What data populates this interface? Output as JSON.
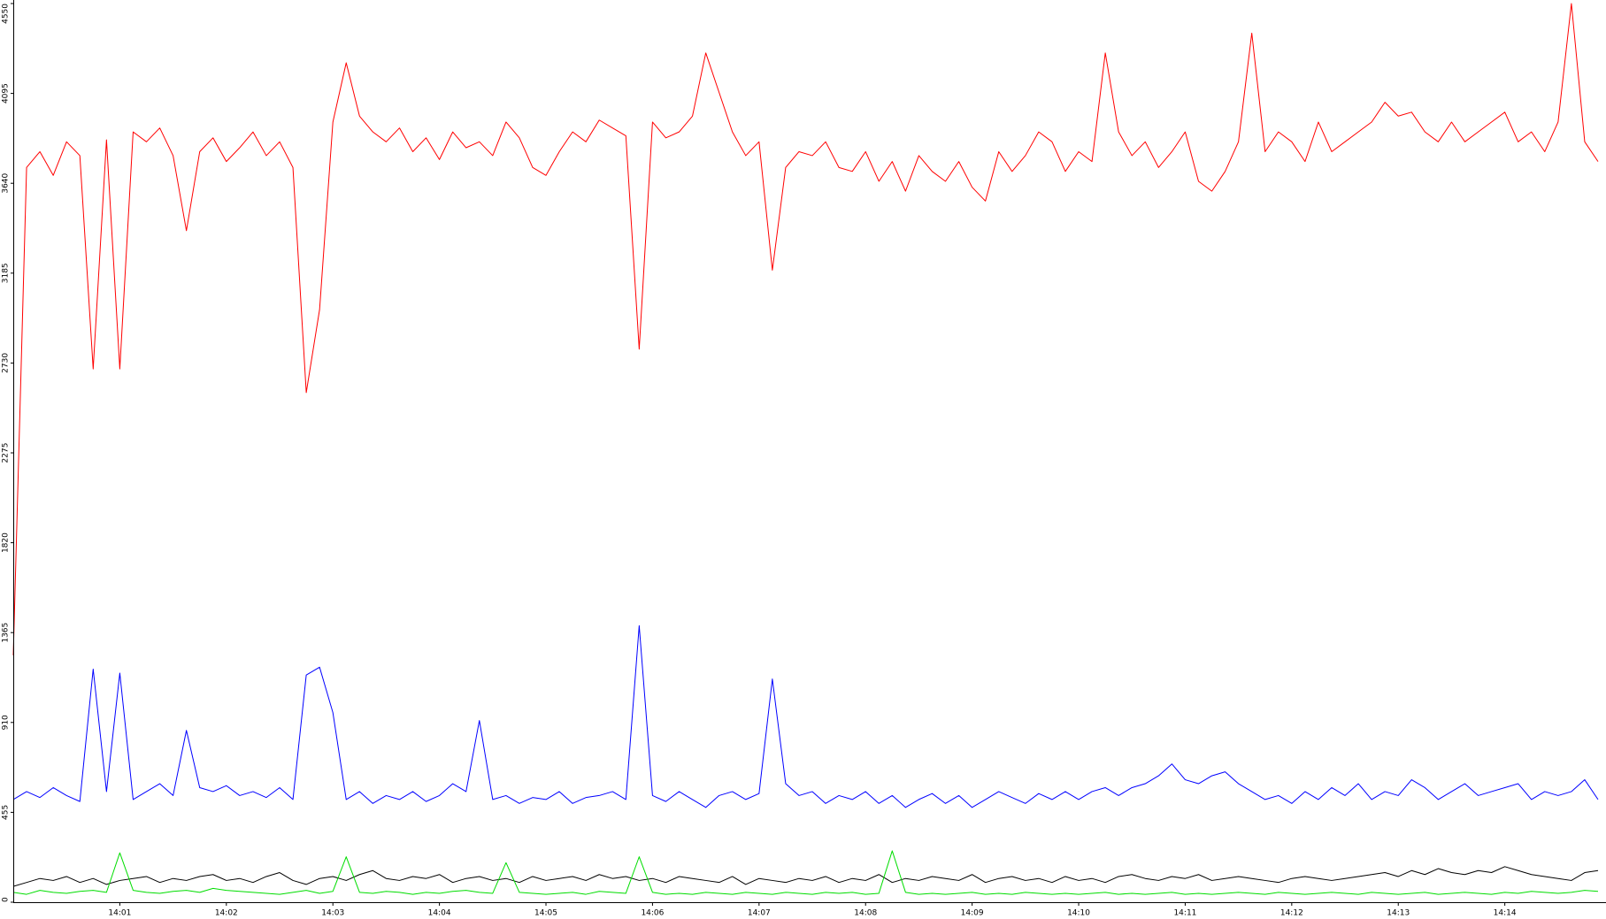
{
  "chart_data": {
    "type": "line",
    "categories": [
      null,
      null,
      null,
      null,
      null,
      null,
      null,
      null,
      "14:01",
      null,
      null,
      null,
      null,
      null,
      null,
      null,
      "14:02",
      null,
      null,
      null,
      null,
      null,
      null,
      null,
      "14:03",
      null,
      null,
      null,
      null,
      null,
      null,
      null,
      "14:04",
      null,
      null,
      null,
      null,
      null,
      null,
      null,
      "14:05",
      null,
      null,
      null,
      null,
      null,
      null,
      null,
      "14:06",
      null,
      null,
      null,
      null,
      null,
      null,
      null,
      "14:07",
      null,
      null,
      null,
      null,
      null,
      null,
      null,
      "14:08",
      null,
      null,
      null,
      null,
      null,
      null,
      null,
      "14:09",
      null,
      null,
      null,
      null,
      null,
      null,
      null,
      "14:10",
      null,
      null,
      null,
      null,
      null,
      null,
      null,
      "14:11",
      null,
      null,
      null,
      null,
      null,
      null,
      null,
      "14:12",
      null,
      null,
      null,
      null,
      null,
      null,
      null,
      "14:13",
      null,
      null,
      null,
      null,
      null,
      null,
      null,
      "14:14",
      null,
      null,
      null,
      null,
      null,
      null,
      null
    ],
    "series": [
      {
        "color": "#ff0000",
        "values": [
          1250,
          3720,
          3800,
          3680,
          3850,
          3780,
          2700,
          3860,
          2700,
          3900,
          3850,
          3920,
          3780,
          3400,
          3800,
          3870,
          3750,
          3820,
          3900,
          3780,
          3850,
          3720,
          2580,
          3000,
          3950,
          4250,
          3980,
          3900,
          3850,
          3920,
          3800,
          3870,
          3760,
          3900,
          3820,
          3850,
          3780,
          3950,
          3870,
          3720,
          3680,
          3800,
          3900,
          3850,
          3960,
          3920,
          3880,
          2800,
          3950,
          3870,
          3900,
          3980,
          4300,
          4100,
          3900,
          3780,
          3850,
          3200,
          3720,
          3800,
          3780,
          3850,
          3720,
          3700,
          3800,
          3650,
          3750,
          3600,
          3780,
          3700,
          3650,
          3750,
          3620,
          3550,
          3800,
          3700,
          3780,
          3900,
          3850,
          3700,
          3800,
          3750,
          4300,
          3900,
          3780,
          3850,
          3720,
          3800,
          3900,
          3650,
          3600,
          3700,
          3850,
          4400,
          3800,
          3900,
          3850,
          3750,
          3950,
          3800,
          3850,
          3900,
          3950,
          4050,
          3980,
          4000,
          3900,
          3850,
          3950,
          3850,
          3900,
          3950,
          4000,
          3850,
          3900,
          3800,
          3950,
          4550,
          3850,
          3750
        ]
      },
      {
        "color": "#0000ff",
        "values": [
          520,
          560,
          530,
          580,
          540,
          510,
          1180,
          560,
          1160,
          520,
          560,
          600,
          540,
          870,
          580,
          560,
          590,
          540,
          560,
          530,
          580,
          520,
          1150,
          1190,
          960,
          520,
          560,
          500,
          540,
          520,
          560,
          510,
          540,
          600,
          560,
          920,
          520,
          540,
          500,
          530,
          520,
          560,
          500,
          530,
          540,
          560,
          520,
          1400,
          540,
          510,
          560,
          520,
          480,
          540,
          560,
          520,
          550,
          1130,
          600,
          540,
          560,
          500,
          540,
          520,
          560,
          500,
          540,
          480,
          520,
          550,
          500,
          540,
          480,
          520,
          560,
          530,
          500,
          550,
          520,
          560,
          520,
          560,
          580,
          540,
          580,
          600,
          640,
          700,
          620,
          600,
          640,
          660,
          600,
          560,
          520,
          540,
          500,
          560,
          520,
          580,
          540,
          600,
          520,
          560,
          540,
          620,
          580,
          520,
          560,
          600,
          540,
          560,
          580,
          600,
          520,
          560,
          540,
          560,
          620,
          520
        ]
      },
      {
        "color": "#000000",
        "values": [
          80,
          100,
          120,
          110,
          130,
          100,
          120,
          90,
          110,
          120,
          130,
          100,
          120,
          110,
          130,
          140,
          110,
          120,
          100,
          130,
          150,
          110,
          90,
          120,
          130,
          110,
          140,
          160,
          120,
          110,
          130,
          120,
          140,
          100,
          120,
          130,
          110,
          120,
          100,
          130,
          110,
          120,
          130,
          110,
          140,
          120,
          130,
          110,
          120,
          100,
          130,
          120,
          110,
          100,
          130,
          90,
          120,
          110,
          100,
          120,
          110,
          130,
          100,
          120,
          110,
          140,
          100,
          120,
          110,
          130,
          120,
          110,
          140,
          100,
          120,
          130,
          110,
          120,
          100,
          130,
          110,
          120,
          100,
          130,
          140,
          120,
          110,
          130,
          120,
          140,
          110,
          120,
          130,
          120,
          110,
          100,
          120,
          130,
          120,
          110,
          120,
          130,
          140,
          150,
          130,
          160,
          140,
          170,
          150,
          140,
          160,
          150,
          180,
          160,
          140,
          130,
          120,
          110,
          150,
          160
        ]
      },
      {
        "color": "#00dd00",
        "values": [
          50,
          40,
          60,
          50,
          45,
          55,
          60,
          50,
          250,
          60,
          50,
          45,
          55,
          60,
          50,
          70,
          60,
          55,
          50,
          45,
          40,
          50,
          60,
          45,
          55,
          230,
          50,
          45,
          55,
          50,
          40,
          50,
          45,
          55,
          60,
          50,
          45,
          200,
          50,
          45,
          40,
          45,
          50,
          40,
          55,
          50,
          45,
          230,
          50,
          40,
          45,
          40,
          50,
          45,
          40,
          50,
          45,
          40,
          50,
          45,
          40,
          50,
          45,
          50,
          40,
          45,
          260,
          50,
          40,
          45,
          40,
          45,
          50,
          40,
          45,
          40,
          50,
          45,
          40,
          45,
          40,
          45,
          50,
          40,
          45,
          40,
          45,
          50,
          40,
          45,
          40,
          45,
          50,
          45,
          40,
          50,
          45,
          40,
          45,
          50,
          45,
          40,
          50,
          45,
          40,
          45,
          50,
          40,
          45,
          50,
          45,
          40,
          50,
          45,
          55,
          50,
          45,
          50,
          60,
          55
        ]
      }
    ],
    "ylim": [
      0,
      4550
    ],
    "yticks": [
      0,
      455,
      910,
      1365,
      1820,
      2275,
      2730,
      3185,
      3640,
      4095,
      4550
    ],
    "grid": false
  }
}
